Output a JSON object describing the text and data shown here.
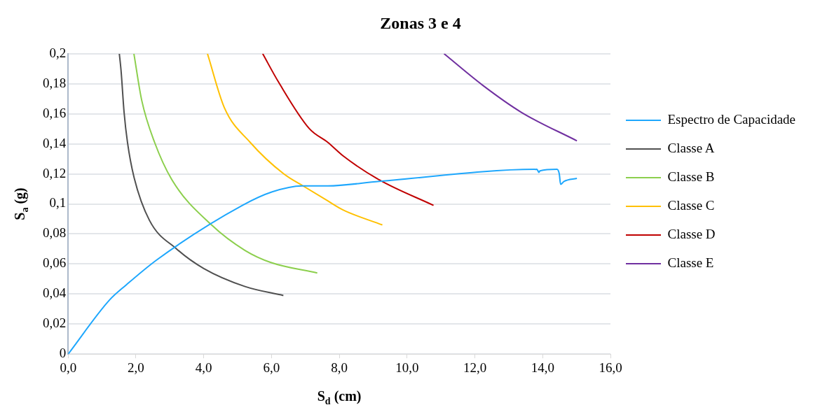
{
  "chart_data": {
    "type": "line",
    "title": "Zonas 3 e 4",
    "xlabel": "S$_{d}$ (cm)",
    "ylabel": "S$_{a}$ (g)",
    "xlim": [
      0,
      16
    ],
    "xticks": [
      {
        "value": 0,
        "label": "0,0"
      },
      {
        "value": 2,
        "label": "2,0"
      },
      {
        "value": 4,
        "label": "4,0"
      },
      {
        "value": 6,
        "label": "6,0"
      },
      {
        "value": 8,
        "label": "8,0"
      },
      {
        "value": 10,
        "label": "10,0"
      },
      {
        "value": 12,
        "label": "12,0"
      },
      {
        "value": 14,
        "label": "14,0"
      },
      {
        "value": 16,
        "label": "16,0"
      }
    ],
    "ylim": [
      0,
      0.2
    ],
    "yticks": [
      0,
      {
        "value": 0.02,
        "label": "0,02"
      },
      {
        "value": 0.04,
        "label": "0,04"
      },
      {
        "value": 0.06,
        "label": "0,06"
      },
      {
        "value": 0.08,
        "label": "0,08"
      },
      {
        "value": 0.1,
        "label": "0,1"
      },
      {
        "value": 0.12,
        "label": "0,12"
      },
      {
        "value": 0.14,
        "label": "0,14"
      },
      {
        "value": 0.16,
        "label": "0,16"
      },
      {
        "value": 0.18,
        "label": "0,18"
      },
      {
        "value": 0.2,
        "label": "0,2"
      }
    ],
    "grid": "y",
    "legend": "right",
    "marker": "none",
    "line_style": "solid",
    "series": [
      {
        "name": "Espectro de Capacidade",
        "color": "#1ea7fd",
        "x": [
          0,
          1.22,
          1.71,
          2.63,
          5.14,
          6.02,
          6.9,
          7.66,
          9.18,
          13.83,
          13.89,
          13.92,
          14.42,
          14.49,
          14.53,
          14.63,
          15.01
        ],
        "values": [
          0,
          0.036,
          0.046,
          0.063,
          0.099,
          0.108,
          0.112,
          0.112,
          0.115,
          0.123,
          0.121,
          0.122,
          0.123,
          0.12,
          0.113,
          0.115,
          0.117
        ]
      },
      {
        "name": "Classe A",
        "color": "#505050",
        "x": [
          1.51,
          1.56,
          1.65,
          1.75,
          1.94,
          2.4,
          3.2,
          4.0,
          5.22,
          6.35
        ],
        "values": [
          0.2,
          0.189,
          0.161,
          0.141,
          0.118,
          0.089,
          0.07,
          0.057,
          0.045,
          0.039
        ]
      },
      {
        "name": "Classe B",
        "color": "#8ccf4d",
        "x": [
          1.94,
          2.17,
          2.55,
          3.09,
          4.23,
          5.22,
          5.98,
          7.35
        ],
        "values": [
          0.2,
          0.169,
          0.141,
          0.115,
          0.086,
          0.069,
          0.061,
          0.054
        ]
      },
      {
        "name": "Classe C",
        "color": "#ffc000",
        "x": [
          4.11,
          4.61,
          5.37,
          6.36,
          6.93,
          7.66,
          8.11,
          9.27
        ],
        "values": [
          0.2,
          0.164,
          0.141,
          0.12,
          0.112,
          0.102,
          0.096,
          0.086
        ]
      },
      {
        "name": "Classe D",
        "color": "#c00000",
        "x": [
          5.74,
          6.21,
          7.12,
          7.66,
          8.11,
          9.18,
          10.78
        ],
        "values": [
          0.2,
          0.181,
          0.15,
          0.141,
          0.132,
          0.116,
          0.099
        ]
      },
      {
        "name": "Classe E",
        "color": "#7030a0",
        "x": [
          11.09,
          12.23,
          13.37,
          15.01
        ],
        "values": [
          0.2,
          0.179,
          0.161,
          0.142
        ]
      }
    ]
  }
}
